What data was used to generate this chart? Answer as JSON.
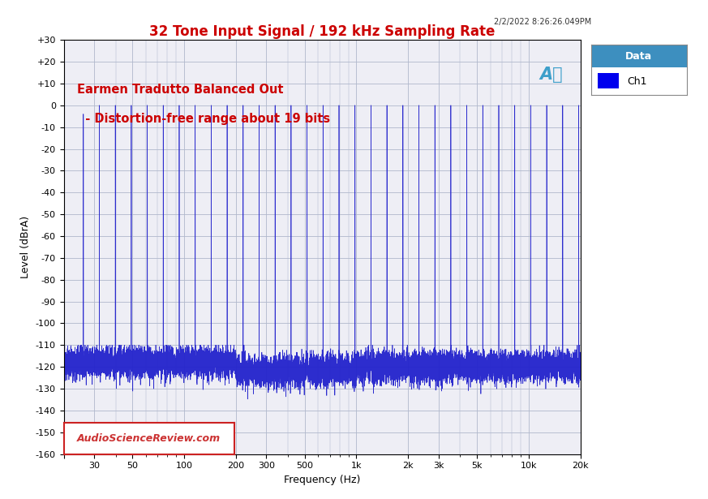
{
  "title": "32 Tone Input Signal / 192 kHz Sampling Rate",
  "title_color": "#cc0000",
  "title_fontsize": 12,
  "subtitle_timestamp": "2/2/2022 8:26:26.049PM",
  "annotation_line1": "Earmen Tradutto Balanced Out",
  "annotation_line2": "  - Distortion-free range about 19 bits",
  "annotation_color": "#cc0000",
  "watermark": "AudioScienceReview.com",
  "xlabel": "Frequency (Hz)",
  "ylabel": "Level (dBrA)",
  "xlim_low": 20,
  "xlim_high": 20000,
  "ylim_low": -160,
  "ylim_high": 30,
  "yticks": [
    30,
    20,
    10,
    0,
    -10,
    -20,
    -30,
    -40,
    -50,
    -60,
    -70,
    -80,
    -90,
    -100,
    -110,
    -120,
    -130,
    -140,
    -150,
    -160
  ],
  "xtick_positions": [
    20,
    30,
    50,
    100,
    200,
    300,
    500,
    1000,
    2000,
    3000,
    5000,
    10000,
    20000
  ],
  "xtick_labels": [
    "",
    "30",
    "50",
    "100",
    "200",
    "300",
    "500",
    "1k",
    "2k",
    "3k",
    "5k",
    "10k",
    "20k"
  ],
  "grid_color": "#b0b8cc",
  "background_color": "#ffffff",
  "plot_bg_color": "#eeeef5",
  "line_color": "#2222cc",
  "legend_header": "Data",
  "legend_label": "Ch1",
  "legend_header_bg": "#3d8fbf",
  "legend_item_bg": "#ffffff",
  "legend_box_color": "#0000ee",
  "ap_logo_color": "#3d9fca"
}
